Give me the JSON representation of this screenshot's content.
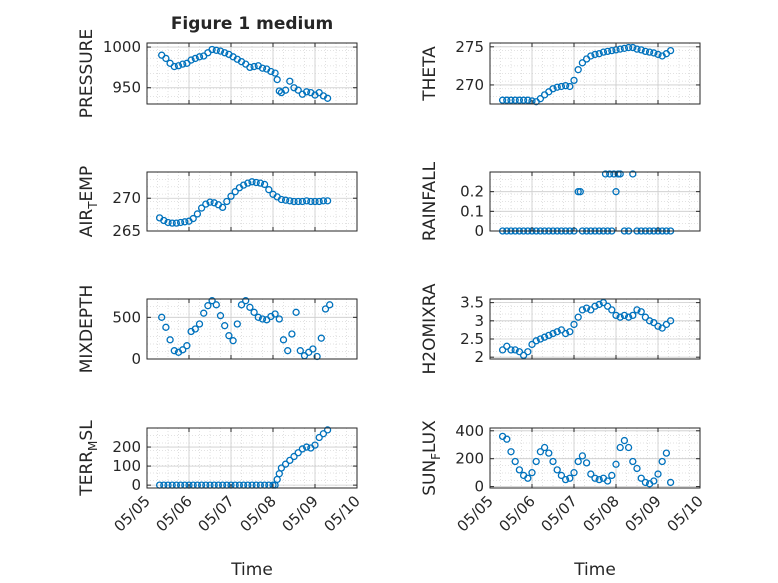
{
  "figure": {
    "title": "Figure 1 medium",
    "xlabel": "Time"
  },
  "style": {
    "marker_color": "#0072BD",
    "axis_color": "#262626",
    "grid_color": "#d9d9d9"
  },
  "x_ticks": [
    "05/05",
    "05/06",
    "05/07",
    "05/08",
    "05/09",
    "05/10"
  ],
  "chart_data": [
    {
      "type": "scatter",
      "ylabel": "PRESSURE",
      "ylabel_sub": "",
      "xlim": [
        5.0,
        10.0
      ],
      "ylim": [
        930,
        1005
      ],
      "yticks": [
        950,
        1000
      ],
      "ytick_labels": [
        "950",
        "1000"
      ],
      "xticks_shown": false,
      "x": [
        5.35,
        5.45,
        5.55,
        5.65,
        5.75,
        5.85,
        5.95,
        6.05,
        6.15,
        6.25,
        6.35,
        6.45,
        6.55,
        6.65,
        6.75,
        6.85,
        6.95,
        7.05,
        7.15,
        7.25,
        7.35,
        7.45,
        7.55,
        7.65,
        7.75,
        7.85,
        7.95,
        8.05,
        8.1,
        8.15,
        8.2,
        8.3,
        8.4,
        8.5,
        8.6,
        8.7,
        8.8,
        8.9,
        9.0,
        9.1,
        9.2,
        9.3
      ],
      "y": [
        990,
        986,
        980,
        976,
        977,
        979,
        980,
        984,
        986,
        988,
        989,
        993,
        997,
        996,
        995,
        993,
        991,
        988,
        985,
        982,
        979,
        975,
        976,
        977,
        974,
        973,
        970,
        968,
        960,
        946,
        944,
        947,
        958,
        950,
        947,
        942,
        945,
        944,
        941,
        944,
        940,
        937
      ]
    },
    {
      "type": "scatter",
      "ylabel": "THETA",
      "ylabel_sub": "",
      "xlim": [
        5.0,
        10.0
      ],
      "ylim": [
        267.5,
        275.5
      ],
      "yticks": [
        270,
        275
      ],
      "ytick_labels": [
        "270",
        "275"
      ],
      "xticks_shown": false,
      "x": [
        5.3,
        5.4,
        5.5,
        5.6,
        5.7,
        5.8,
        5.9,
        6.0,
        6.1,
        6.2,
        6.3,
        6.4,
        6.5,
        6.6,
        6.7,
        6.8,
        6.9,
        7.0,
        7.1,
        7.2,
        7.3,
        7.4,
        7.5,
        7.6,
        7.7,
        7.8,
        7.9,
        8.0,
        8.1,
        8.2,
        8.3,
        8.4,
        8.5,
        8.6,
        8.7,
        8.8,
        8.9,
        9.0,
        9.1,
        9.2,
        9.3
      ],
      "y": [
        268.0,
        268.0,
        268.0,
        268.0,
        268.0,
        268.0,
        268.0,
        267.9,
        267.8,
        268.2,
        268.7,
        269.1,
        269.5,
        269.7,
        269.8,
        269.9,
        269.8,
        270.6,
        272.0,
        272.9,
        273.4,
        273.8,
        274.0,
        274.1,
        274.3,
        274.4,
        274.5,
        274.6,
        274.7,
        274.8,
        274.9,
        274.9,
        274.7,
        274.6,
        274.4,
        274.3,
        274.2,
        274.0,
        273.8,
        274.1,
        274.5
      ]
    },
    {
      "type": "scatter",
      "ylabel": "AIR",
      "ylabel_sub": "T",
      "ylabel_suffix": "EMP",
      "xlim": [
        5.0,
        10.0
      ],
      "ylim": [
        265,
        274
      ],
      "yticks": [
        265,
        270
      ],
      "ytick_labels": [
        "265",
        "270"
      ],
      "xticks_shown": false,
      "x": [
        5.3,
        5.4,
        5.5,
        5.6,
        5.7,
        5.8,
        5.9,
        6.0,
        6.1,
        6.2,
        6.3,
        6.4,
        6.5,
        6.6,
        6.7,
        6.8,
        6.9,
        7.0,
        7.1,
        7.2,
        7.3,
        7.4,
        7.5,
        7.6,
        7.7,
        7.8,
        7.9,
        8.0,
        8.1,
        8.2,
        8.3,
        8.4,
        8.5,
        8.6,
        8.7,
        8.8,
        8.9,
        9.0,
        9.1,
        9.2,
        9.3
      ],
      "y": [
        267.0,
        266.6,
        266.3,
        266.2,
        266.2,
        266.3,
        266.4,
        266.5,
        266.9,
        267.6,
        268.5,
        269.1,
        269.4,
        269.3,
        269.0,
        268.6,
        269.5,
        270.3,
        271.0,
        271.6,
        272.0,
        272.3,
        272.5,
        272.4,
        272.3,
        272.1,
        271.3,
        270.6,
        270.2,
        269.8,
        269.7,
        269.6,
        269.5,
        269.5,
        269.5,
        269.6,
        269.5,
        269.5,
        269.5,
        269.6,
        269.6
      ]
    },
    {
      "type": "scatter",
      "ylabel": "RAINFALL",
      "ylabel_sub": "",
      "xlim": [
        5.0,
        10.0
      ],
      "ylim": [
        0,
        0.3
      ],
      "yticks": [
        0,
        0.1,
        0.2
      ],
      "ytick_labels": [
        "0",
        "0.1",
        "0.2"
      ],
      "xticks_shown": false,
      "x": [
        5.3,
        5.4,
        5.5,
        5.6,
        5.7,
        5.8,
        5.9,
        6.0,
        6.1,
        6.2,
        6.3,
        6.4,
        6.5,
        6.6,
        6.7,
        6.8,
        6.9,
        7.0,
        7.1,
        7.15,
        7.2,
        7.3,
        7.4,
        7.5,
        7.6,
        7.7,
        7.75,
        7.8,
        7.85,
        7.9,
        7.95,
        8.0,
        8.05,
        8.1,
        8.2,
        8.3,
        8.4,
        8.5,
        8.6,
        8.7,
        8.8,
        8.9,
        9.0,
        9.1,
        9.2,
        9.3
      ],
      "y": [
        0,
        0,
        0,
        0,
        0,
        0,
        0,
        0,
        0,
        0,
        0,
        0,
        0,
        0,
        0,
        0,
        0,
        0,
        0.2,
        0.2,
        0,
        0,
        0,
        0,
        0,
        0,
        0.29,
        0,
        0.29,
        0,
        0.29,
        0.2,
        0.29,
        0.29,
        0,
        0,
        0.29,
        0,
        0,
        0,
        0,
        0,
        0,
        0,
        0,
        0
      ]
    },
    {
      "type": "scatter",
      "ylabel": "MIXDEPTH",
      "ylabel_sub": "",
      "xlim": [
        5.0,
        10.0
      ],
      "ylim": [
        0,
        720
      ],
      "yticks": [
        0,
        500
      ],
      "ytick_labels": [
        "0",
        "500"
      ],
      "xticks_shown": false,
      "x": [
        5.35,
        5.45,
        5.55,
        5.65,
        5.75,
        5.85,
        5.95,
        6.05,
        6.15,
        6.25,
        6.35,
        6.45,
        6.55,
        6.65,
        6.75,
        6.85,
        6.95,
        7.05,
        7.15,
        7.25,
        7.35,
        7.45,
        7.55,
        7.65,
        7.75,
        7.85,
        7.95,
        8.05,
        8.15,
        8.25,
        8.35,
        8.45,
        8.55,
        8.65,
        8.75,
        8.85,
        8.95,
        9.05,
        9.15,
        9.25,
        9.35
      ],
      "y": [
        500,
        380,
        230,
        100,
        80,
        110,
        160,
        330,
        360,
        420,
        550,
        640,
        700,
        650,
        520,
        400,
        280,
        220,
        420,
        650,
        700,
        620,
        560,
        500,
        480,
        470,
        510,
        540,
        480,
        230,
        100,
        300,
        560,
        100,
        40,
        80,
        120,
        30,
        250,
        600,
        650
      ]
    },
    {
      "type": "scatter",
      "ylabel": "H2OMIXRA",
      "ylabel_sub": "",
      "xlim": [
        5.0,
        10.0
      ],
      "ylim": [
        1.95,
        3.6
      ],
      "yticks": [
        2,
        2.5,
        3,
        3.5
      ],
      "ytick_labels": [
        "2",
        "2.5",
        "3",
        "3.5"
      ],
      "xticks_shown": false,
      "x": [
        5.3,
        5.4,
        5.5,
        5.6,
        5.7,
        5.8,
        5.9,
        6.0,
        6.1,
        6.2,
        6.3,
        6.4,
        6.5,
        6.6,
        6.7,
        6.8,
        6.9,
        7.0,
        7.1,
        7.2,
        7.3,
        7.4,
        7.5,
        7.6,
        7.7,
        7.8,
        7.9,
        8.0,
        8.1,
        8.2,
        8.3,
        8.4,
        8.5,
        8.6,
        8.7,
        8.8,
        8.9,
        9.0,
        9.1,
        9.2,
        9.3
      ],
      "y": [
        2.2,
        2.3,
        2.2,
        2.2,
        2.15,
        2.05,
        2.15,
        2.35,
        2.45,
        2.5,
        2.55,
        2.6,
        2.65,
        2.7,
        2.75,
        2.65,
        2.7,
        2.9,
        3.1,
        3.3,
        3.35,
        3.3,
        3.4,
        3.45,
        3.5,
        3.4,
        3.3,
        3.15,
        3.1,
        3.15,
        3.1,
        3.15,
        3.3,
        3.25,
        3.1,
        3.0,
        2.95,
        2.85,
        2.8,
        2.9,
        3.0
      ]
    },
    {
      "type": "scatter",
      "ylabel": "TERR",
      "ylabel_sub": "M",
      "ylabel_suffix": "SL",
      "xlim": [
        5.0,
        10.0
      ],
      "ylim": [
        -15,
        300
      ],
      "yticks": [
        0,
        100,
        200
      ],
      "ytick_labels": [
        "0",
        "100",
        "200"
      ],
      "xticks_shown": true,
      "x": [
        5.3,
        5.4,
        5.5,
        5.6,
        5.7,
        5.8,
        5.9,
        6.0,
        6.1,
        6.2,
        6.3,
        6.4,
        6.5,
        6.6,
        6.7,
        6.8,
        6.9,
        7.0,
        7.1,
        7.2,
        7.3,
        7.4,
        7.5,
        7.6,
        7.7,
        7.8,
        7.9,
        8.0,
        8.05,
        8.1,
        8.15,
        8.2,
        8.3,
        8.4,
        8.5,
        8.6,
        8.7,
        8.8,
        8.9,
        9.0,
        9.1,
        9.2,
        9.3
      ],
      "y": [
        0,
        0,
        0,
        0,
        0,
        0,
        0,
        0,
        0,
        0,
        0,
        0,
        0,
        0,
        0,
        0,
        0,
        0,
        0,
        0,
        0,
        0,
        0,
        0,
        0,
        0,
        0,
        0,
        0,
        30,
        60,
        90,
        110,
        130,
        150,
        170,
        190,
        200,
        195,
        210,
        250,
        270,
        290
      ]
    },
    {
      "type": "scatter",
      "ylabel": "SUN",
      "ylabel_sub": "F",
      "ylabel_suffix": "LUX",
      "xlim": [
        5.0,
        10.0
      ],
      "ylim": [
        -10,
        420
      ],
      "yticks": [
        0,
        200,
        400
      ],
      "ytick_labels": [
        "0",
        "200",
        "400"
      ],
      "xticks_shown": true,
      "x": [
        5.3,
        5.4,
        5.5,
        5.6,
        5.7,
        5.8,
        5.9,
        6.0,
        6.1,
        6.2,
        6.3,
        6.4,
        6.5,
        6.6,
        6.7,
        6.8,
        6.9,
        7.0,
        7.1,
        7.2,
        7.3,
        7.4,
        7.5,
        7.6,
        7.7,
        7.8,
        7.9,
        8.0,
        8.1,
        8.2,
        8.3,
        8.4,
        8.5,
        8.6,
        8.7,
        8.8,
        8.9,
        9.0,
        9.1,
        9.2,
        9.3
      ],
      "y": [
        360,
        340,
        250,
        180,
        120,
        80,
        60,
        100,
        180,
        250,
        280,
        240,
        180,
        120,
        80,
        50,
        60,
        100,
        180,
        220,
        170,
        90,
        60,
        50,
        60,
        40,
        80,
        160,
        280,
        330,
        280,
        180,
        130,
        60,
        30,
        20,
        40,
        90,
        180,
        240,
        30
      ]
    }
  ]
}
